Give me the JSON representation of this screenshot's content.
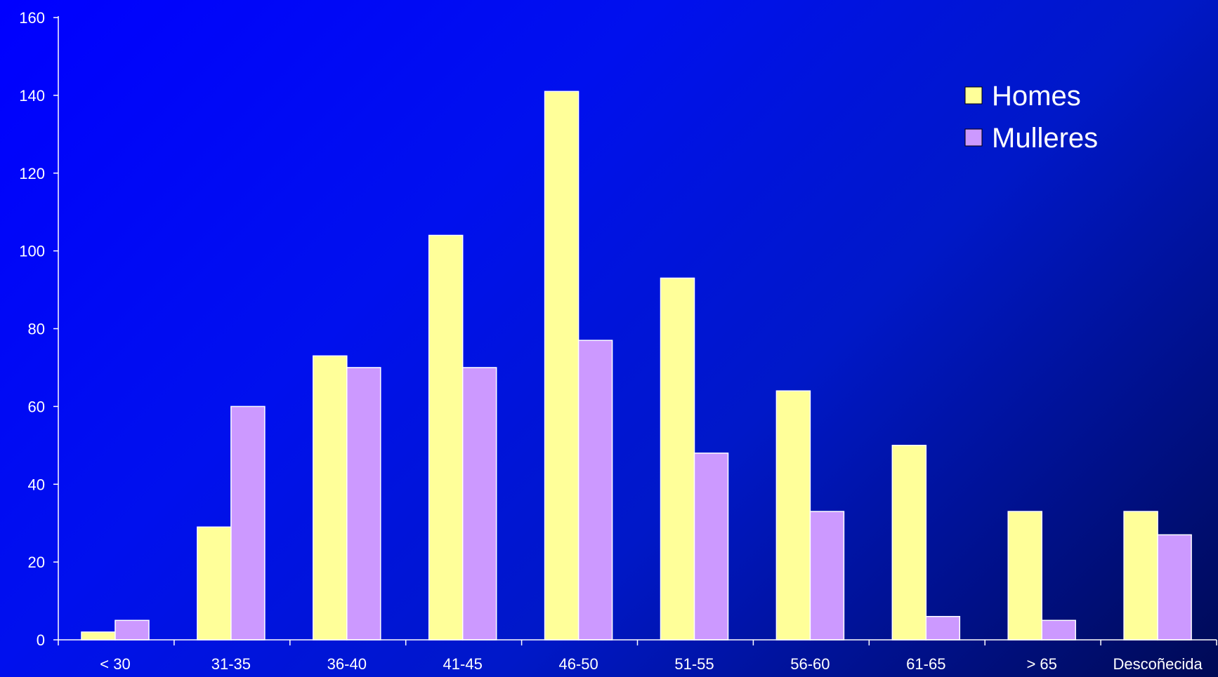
{
  "chart_data": {
    "type": "bar",
    "title": "",
    "xlabel": "",
    "ylabel": "",
    "categories": [
      "< 30",
      "31-35",
      "36-40",
      "41-45",
      "46-50",
      "51-55",
      "56-60",
      "61-65",
      "> 65",
      "Descoñecida"
    ],
    "series": [
      {
        "name": "Homes",
        "color": "#ffff99",
        "values": [
          2,
          29,
          73,
          104,
          141,
          93,
          64,
          50,
          33,
          33
        ]
      },
      {
        "name": "Mulleres",
        "color": "#cc99ff",
        "values": [
          5,
          60,
          70,
          70,
          77,
          48,
          33,
          6,
          5,
          27
        ]
      }
    ],
    "ylim": [
      0,
      160
    ],
    "yticks": [
      0,
      20,
      40,
      60,
      80,
      100,
      120,
      140,
      160
    ],
    "grid": false,
    "legend_position": "top-right",
    "colors": {
      "background": "#0000ff",
      "axis": "#ffffff",
      "bar_outline": "#ffffff"
    }
  }
}
